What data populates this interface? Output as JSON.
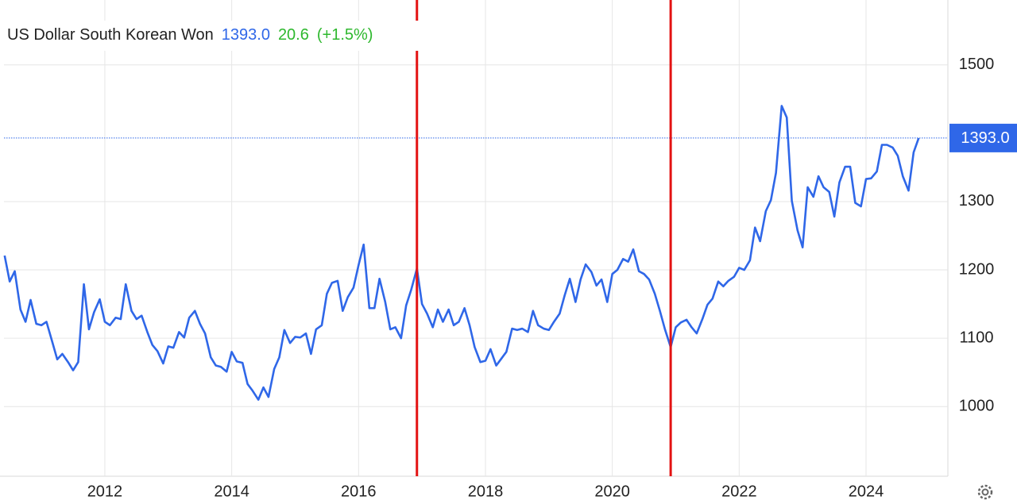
{
  "chart_data": {
    "type": "line",
    "title": "US Dollar South Korean Won",
    "price_label": "1393.0",
    "change": "20.6",
    "change_percent": "(+1.5%)",
    "color": "#2f67e8",
    "grid": true,
    "xlim": [
      2010.41,
      2025.29
    ],
    "ylim": [
      898,
      1595
    ],
    "xticks": [
      2012,
      2014,
      2016,
      2018,
      2020,
      2022,
      2024
    ],
    "yticks": [
      1000,
      1100,
      1200,
      1300,
      1500
    ],
    "vlines": {
      "values": [
        2016.92,
        2020.92
      ],
      "color": "#e31212"
    },
    "x": [
      2010.42,
      2010.5,
      2010.58,
      2010.67,
      2010.75,
      2010.83,
      2010.92,
      2011.0,
      2011.08,
      2011.17,
      2011.25,
      2011.33,
      2011.42,
      2011.5,
      2011.58,
      2011.67,
      2011.75,
      2011.83,
      2011.92,
      2012.0,
      2012.08,
      2012.17,
      2012.25,
      2012.33,
      2012.42,
      2012.5,
      2012.58,
      2012.67,
      2012.75,
      2012.83,
      2012.92,
      2013.0,
      2013.08,
      2013.17,
      2013.25,
      2013.33,
      2013.42,
      2013.5,
      2013.58,
      2013.67,
      2013.75,
      2013.83,
      2013.92,
      2014.0,
      2014.08,
      2014.17,
      2014.25,
      2014.33,
      2014.42,
      2014.5,
      2014.58,
      2014.67,
      2014.75,
      2014.83,
      2014.92,
      2015.0,
      2015.08,
      2015.17,
      2015.25,
      2015.33,
      2015.42,
      2015.5,
      2015.58,
      2015.67,
      2015.75,
      2015.83,
      2015.92,
      2016.0,
      2016.08,
      2016.17,
      2016.25,
      2016.33,
      2016.42,
      2016.5,
      2016.58,
      2016.67,
      2016.75,
      2016.83,
      2016.92,
      2017.0,
      2017.08,
      2017.17,
      2017.25,
      2017.33,
      2017.42,
      2017.5,
      2017.58,
      2017.67,
      2017.75,
      2017.83,
      2017.92,
      2018.0,
      2018.08,
      2018.17,
      2018.25,
      2018.33,
      2018.42,
      2018.5,
      2018.58,
      2018.67,
      2018.75,
      2018.83,
      2018.92,
      2019.0,
      2019.08,
      2019.17,
      2019.25,
      2019.33,
      2019.42,
      2019.5,
      2019.58,
      2019.67,
      2019.75,
      2019.83,
      2019.92,
      2020.0,
      2020.08,
      2020.17,
      2020.25,
      2020.33,
      2020.42,
      2020.5,
      2020.58,
      2020.67,
      2020.75,
      2020.83,
      2020.92,
      2021.0,
      2021.08,
      2021.17,
      2021.25,
      2021.33,
      2021.42,
      2021.5,
      2021.58,
      2021.67,
      2021.75,
      2021.83,
      2021.92,
      2022.0,
      2022.08,
      2022.17,
      2022.25,
      2022.33,
      2022.42,
      2022.5,
      2022.58,
      2022.67,
      2022.75,
      2022.83,
      2022.92,
      2023.0,
      2023.08,
      2023.17,
      2023.25,
      2023.33,
      2023.42,
      2023.5,
      2023.58,
      2023.67,
      2023.75,
      2023.83,
      2023.92,
      2024.0,
      2024.08,
      2024.17,
      2024.25,
      2024.33,
      2024.42,
      2024.5,
      2024.58,
      2024.67,
      2024.75,
      2024.83
    ],
    "values": [
      1221,
      1183,
      1198,
      1142,
      1124,
      1156,
      1121,
      1119,
      1124,
      1095,
      1069,
      1077,
      1065,
      1053,
      1065,
      1179,
      1113,
      1138,
      1157,
      1124,
      1119,
      1130,
      1128,
      1179,
      1140,
      1128,
      1133,
      1109,
      1090,
      1081,
      1063,
      1088,
      1086,
      1109,
      1101,
      1130,
      1140,
      1121,
      1107,
      1072,
      1060,
      1058,
      1051,
      1080,
      1066,
      1064,
      1033,
      1023,
      1010,
      1028,
      1014,
      1055,
      1072,
      1112,
      1093,
      1102,
      1101,
      1107,
      1077,
      1113,
      1119,
      1165,
      1181,
      1184,
      1140,
      1160,
      1174,
      1207,
      1237,
      1144,
      1144,
      1187,
      1153,
      1113,
      1116,
      1100,
      1148,
      1171,
      1202,
      1150,
      1136,
      1116,
      1142,
      1124,
      1142,
      1119,
      1124,
      1144,
      1119,
      1087,
      1065,
      1067,
      1084,
      1060,
      1070,
      1080,
      1114,
      1112,
      1114,
      1109,
      1140,
      1119,
      1114,
      1112,
      1124,
      1136,
      1163,
      1187,
      1153,
      1186,
      1208,
      1197,
      1177,
      1186,
      1153,
      1194,
      1200,
      1216,
      1212,
      1230,
      1198,
      1194,
      1186,
      1165,
      1140,
      1113,
      1087,
      1116,
      1123,
      1127,
      1116,
      1107,
      1128,
      1149,
      1158,
      1183,
      1176,
      1184,
      1190,
      1203,
      1200,
      1214,
      1262,
      1242,
      1286,
      1302,
      1342,
      1440,
      1423,
      1301,
      1258,
      1233,
      1321,
      1307,
      1337,
      1321,
      1314,
      1278,
      1328,
      1351,
      1351,
      1298,
      1293,
      1333,
      1334,
      1344,
      1383,
      1383,
      1379,
      1367,
      1337,
      1316,
      1372,
      1393
    ]
  }
}
